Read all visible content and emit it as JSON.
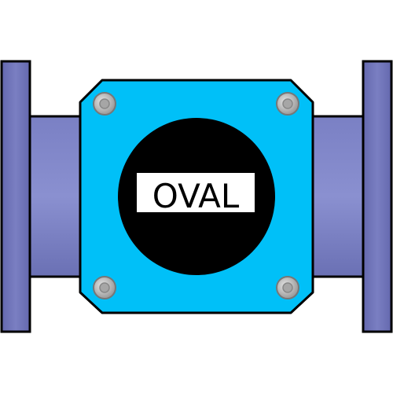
{
  "meter": {
    "brand_label": "OVAL",
    "colors": {
      "body": "#00c0f8",
      "pipe": "#6c72b8",
      "pipe_light": "#8c92d0",
      "flange": "#6c6fb6",
      "dial": "#000000",
      "label_bg": "#ffffff",
      "bolt": "#b8b8b8",
      "outline": "#000000"
    },
    "bolt_count": 4
  }
}
